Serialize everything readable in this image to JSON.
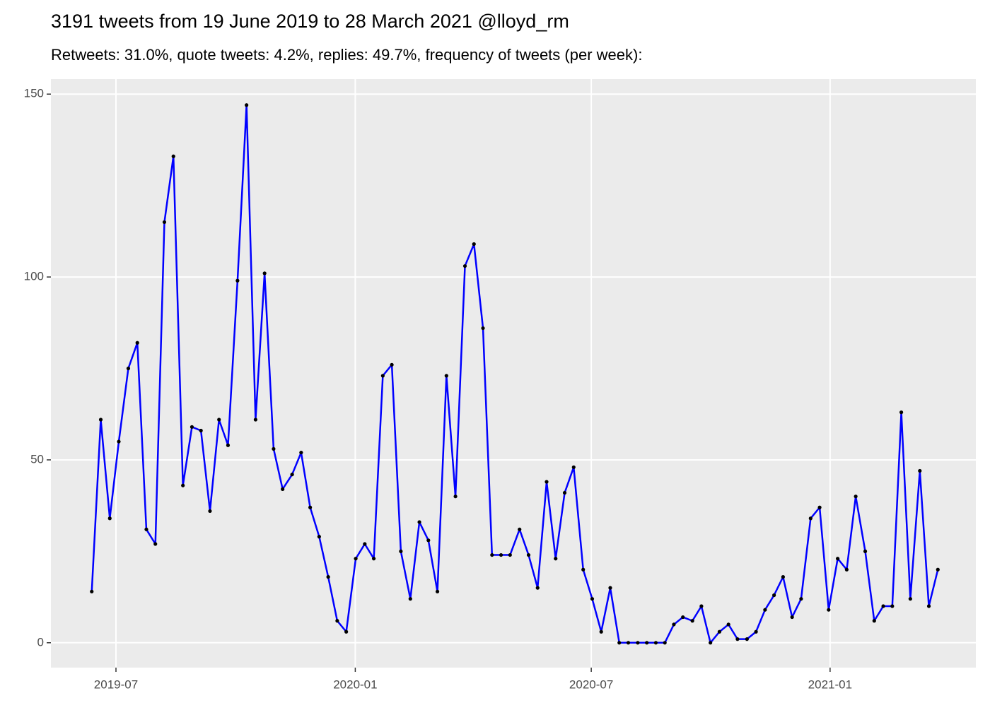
{
  "chart_data": {
    "type": "line",
    "title": "3191 tweets from 19 June 2019 to 28 March 2021 @lloyd_rm",
    "subtitle": "Retweets: 31.0%, quote tweets: 4.2%, replies: 49.7%, frequency of tweets (per week):",
    "x": [
      2019.445,
      2019.464,
      2019.483,
      2019.502,
      2019.522,
      2019.541,
      2019.56,
      2019.579,
      2019.598,
      2019.617,
      2019.637,
      2019.656,
      2019.675,
      2019.694,
      2019.713,
      2019.732,
      2019.752,
      2019.771,
      2019.79,
      2019.809,
      2019.828,
      2019.847,
      2019.867,
      2019.886,
      2019.905,
      2019.924,
      2019.943,
      2019.962,
      2019.981,
      2020.001,
      2020.02,
      2020.039,
      2020.058,
      2020.077,
      2020.096,
      2020.116,
      2020.135,
      2020.154,
      2020.173,
      2020.192,
      2020.211,
      2020.231,
      2020.25,
      2020.269,
      2020.288,
      2020.307,
      2020.326,
      2020.346,
      2020.365,
      2020.384,
      2020.403,
      2020.422,
      2020.441,
      2020.46,
      2020.48,
      2020.499,
      2020.518,
      2020.537,
      2020.556,
      2020.575,
      2020.595,
      2020.614,
      2020.633,
      2020.652,
      2020.671,
      2020.69,
      2020.71,
      2020.729,
      2020.748,
      2020.767,
      2020.786,
      2020.805,
      2020.825,
      2020.844,
      2020.863,
      2020.882,
      2020.901,
      2020.92,
      2020.939,
      2020.959,
      2020.978,
      2020.997,
      2021.016,
      2021.035,
      2021.054,
      2021.074,
      2021.093,
      2021.112,
      2021.131,
      2021.15,
      2021.169,
      2021.189,
      2021.208,
      2021.227
    ],
    "series": [
      {
        "color": "#0000ff",
        "point_color": "#000000",
        "values": [
          14,
          61,
          34,
          55,
          75,
          82,
          31,
          27,
          115,
          133,
          43,
          59,
          58,
          36,
          61,
          54,
          99,
          147,
          61,
          101,
          53,
          42,
          46,
          52,
          37,
          29,
          18,
          6,
          3,
          23,
          27,
          23,
          73,
          76,
          25,
          12,
          33,
          28,
          14,
          73,
          40,
          103,
          109,
          86,
          24,
          24,
          24,
          31,
          24,
          15,
          44,
          23,
          41,
          48,
          20,
          12,
          3,
          15,
          0,
          0,
          0,
          0,
          0,
          0,
          5,
          7,
          6,
          10,
          0,
          3,
          5,
          1,
          1,
          3,
          9,
          13,
          18,
          7,
          12,
          34,
          37,
          9,
          23,
          20,
          40,
          25,
          6,
          10,
          10,
          63,
          12,
          47,
          10,
          20
        ]
      }
    ],
    "xlim": [
      2019.359,
      2021.307
    ],
    "xticks": [
      {
        "value": 2019.496,
        "label": "2019-07"
      },
      {
        "value": 2020.0,
        "label": "2020-01"
      },
      {
        "value": 2020.497,
        "label": "2020-07"
      },
      {
        "value": 2021.0,
        "label": "2021-01"
      }
    ],
    "ylim": [
      -6.8,
      154.1
    ],
    "yticks": [
      0,
      50,
      100,
      150
    ],
    "grid": true
  }
}
